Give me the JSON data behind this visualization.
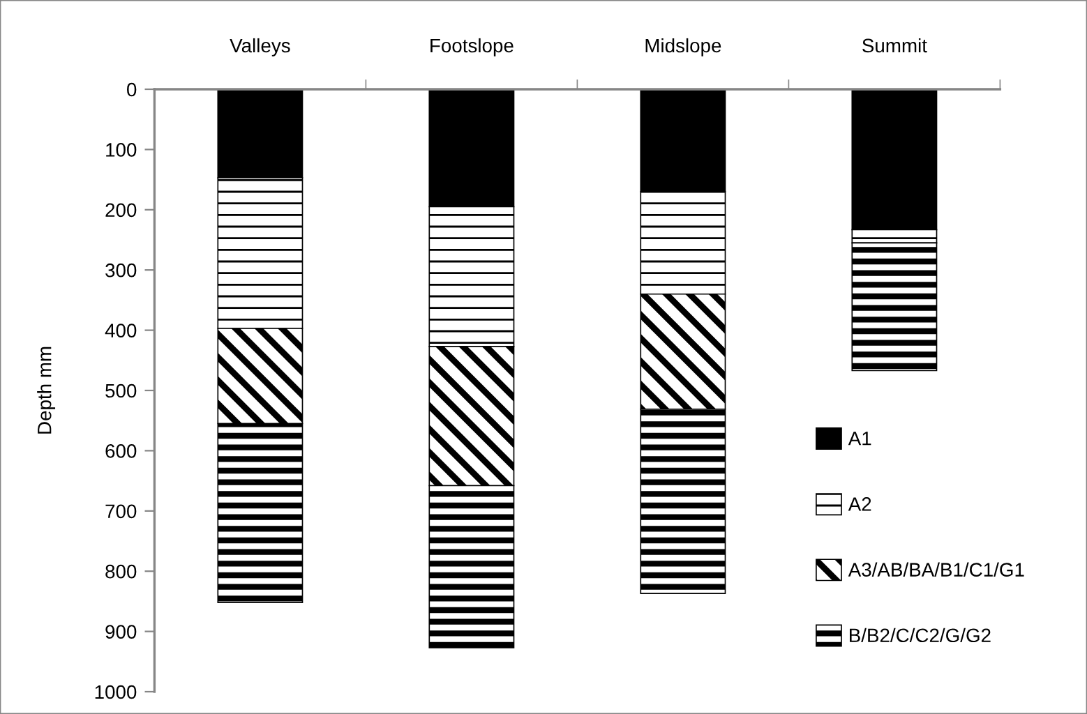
{
  "chart_data": {
    "type": "bar",
    "stacked": true,
    "ylabel": "Depth mm",
    "categories": [
      "Valleys",
      "Footslope",
      "Midslope",
      "Summit"
    ],
    "series": [
      {
        "name": "A1",
        "color": "#000000",
        "values": [
          147,
          195,
          170,
          233
        ]
      },
      {
        "name": "A2",
        "color": "#000000",
        "values": [
          250,
          232,
          170,
          22
        ]
      },
      {
        "name": "A3/AB/BA/B1/C1/G1",
        "color": "#000000",
        "values": [
          158,
          231,
          191,
          null
        ]
      },
      {
        "name": "B/B2/C/C2/G/G2",
        "color": "#000000",
        "values": [
          297,
          269,
          306,
          212
        ]
      }
    ],
    "ylim": [
      1000,
      0
    ],
    "yticks": [
      0,
      100,
      200,
      300,
      400,
      500,
      600,
      700,
      800,
      900,
      1000
    ],
    "legend": "bottom right"
  }
}
